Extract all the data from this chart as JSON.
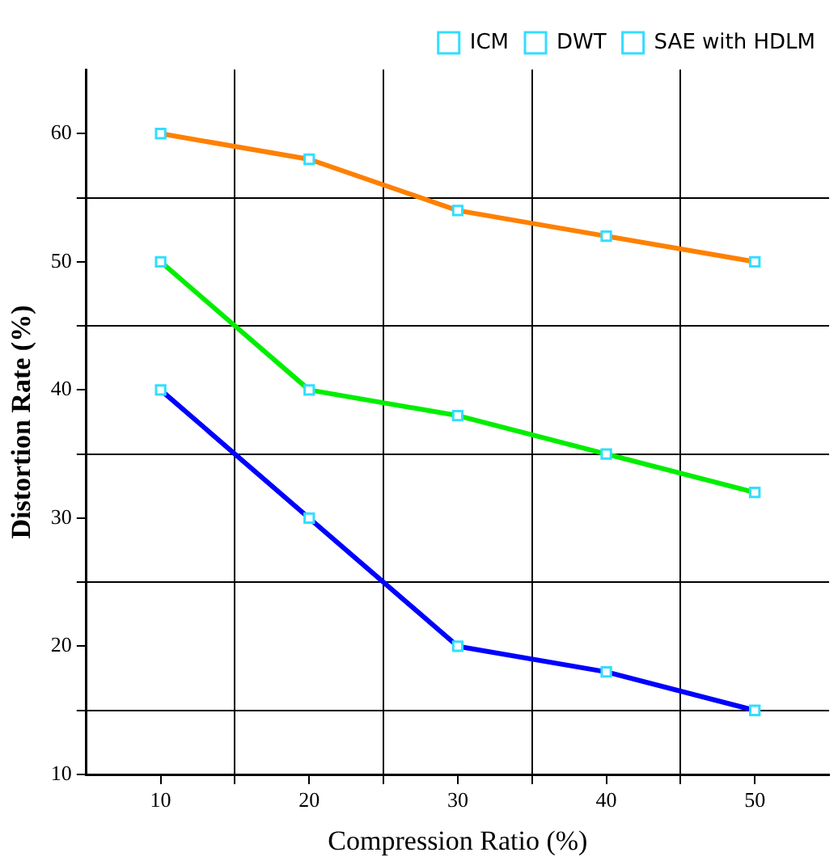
{
  "chart_data": {
    "type": "line",
    "xlabel": "Compression Ratio (%)",
    "ylabel": "Distortion Rate (%)",
    "x": [
      10,
      20,
      30,
      40,
      50
    ],
    "series": [
      {
        "name": "ICM",
        "color": "#ff8000",
        "values": [
          60,
          58,
          54,
          52,
          50
        ]
      },
      {
        "name": "DWT",
        "color": "#00ee00",
        "values": [
          50,
          40,
          38,
          35,
          32
        ]
      },
      {
        "name": "SAE with HDLM",
        "color": "#0000ff",
        "values": [
          40,
          30,
          20,
          18,
          15
        ]
      }
    ],
    "xlim": [
      5,
      55
    ],
    "ylim": [
      10,
      65
    ],
    "xticks": [
      10,
      {
        "value": 15,
        "label": null
      },
      20,
      {
        "value": 25,
        "label": null
      },
      30,
      {
        "value": 35,
        "label": null
      },
      40,
      {
        "value": 45,
        "label": null
      },
      50
    ],
    "yticks": [
      10,
      {
        "value": 15,
        "label": null
      },
      20,
      {
        "value": 25,
        "label": null
      },
      30,
      {
        "value": 35,
        "label": null
      },
      40,
      {
        "value": 45,
        "label": null
      },
      50,
      {
        "value": 55,
        "label": null
      },
      60
    ],
    "grid": true,
    "legend": "top right",
    "marker": "square",
    "line_style": "solid"
  }
}
